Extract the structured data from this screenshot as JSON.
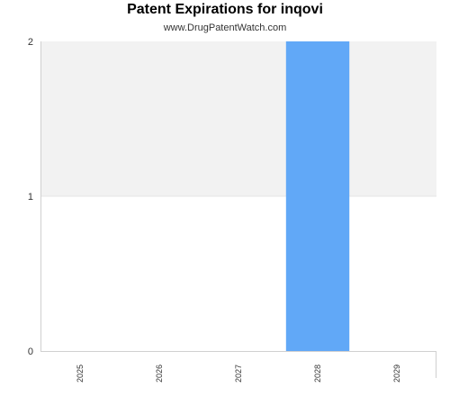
{
  "chart_data": {
    "type": "bar",
    "title": "Patent Expirations for inqovi",
    "subtitle": "www.DrugPatentWatch.com",
    "categories": [
      "2025",
      "2026",
      "2027",
      "2028",
      "2029"
    ],
    "values": [
      0,
      0,
      0,
      2,
      0
    ],
    "ylim": [
      0,
      2
    ],
    "yticks": [
      "0",
      "1",
      "2"
    ],
    "xlabel": "",
    "ylabel": "",
    "grid": true,
    "colors": {
      "bar": "#61a8f7",
      "band": "#f2f2f2",
      "plot_bg": "#ffffff",
      "axis": "#d0d0d0"
    }
  }
}
